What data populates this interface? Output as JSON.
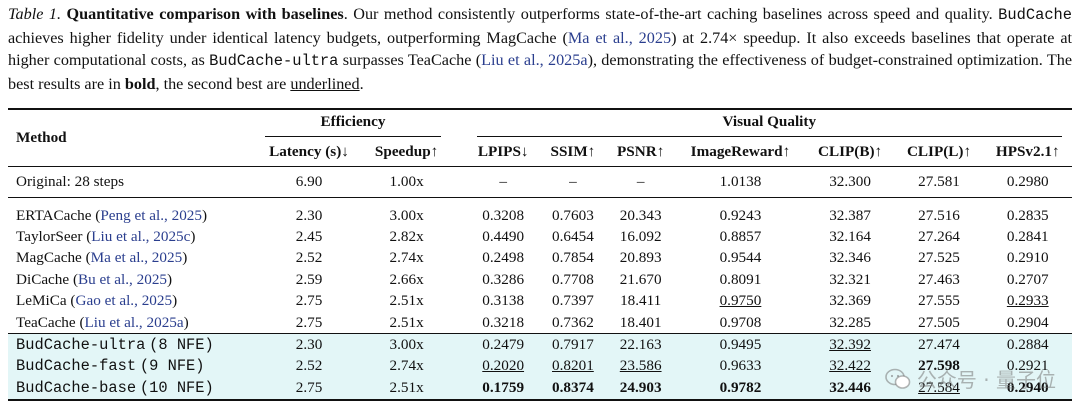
{
  "caption": {
    "label": "Table 1.",
    "title": "Quantitative comparison with baselines",
    "t1": ". Our method consistently outperforms state-of-the-art caching baselines across speed and quality. ",
    "code1": "BudCache",
    "t2": " achieves higher fidelity under identical latency budgets, outperforming MagCache (",
    "cite1": "Ma et al., 2025",
    "t3": ") at 2.74× speedup. It also exceeds baselines that operate at higher computational costs, as ",
    "code2": "BudCache-ultra",
    "t4": " surpasses TeaCache (",
    "cite2": "Liu et al., 2025a",
    "t5": "), demonstrating the effectiveness of budget-constrained optimization. The best results are in ",
    "bold_word": "bold",
    "t6": ", the second best are ",
    "underline_word": "underlined",
    "t7": "."
  },
  "table": {
    "method_header": "Method",
    "group_efficiency": "Efficiency",
    "group_quality": "Visual Quality",
    "columns": [
      "Latency (s)↓",
      "Speedup↑",
      "LPIPS↓",
      "SSIM↑",
      "PSNR↑",
      "ImageReward↑",
      "CLIP(B)↑",
      "CLIP(L)↑",
      "HPSv2.1↑"
    ],
    "original": {
      "method": "Original: 28 steps",
      "cells": [
        "6.90",
        "1.00x",
        "–",
        "–",
        "–",
        "1.0138",
        "32.300",
        "27.581",
        "0.2980"
      ]
    },
    "baselines": [
      {
        "name": "ERTACache",
        "cite": "Peng et al., 2025",
        "cells": [
          "2.30",
          "3.00x",
          "0.3208",
          "0.7603",
          "20.343",
          "0.9243",
          "32.387",
          "27.516",
          "0.2835"
        ]
      },
      {
        "name": "TaylorSeer",
        "cite": "Liu et al., 2025c",
        "cells": [
          "2.45",
          "2.82x",
          "0.4490",
          "0.6454",
          "16.092",
          "0.8857",
          "32.164",
          "27.264",
          "0.2841"
        ]
      },
      {
        "name": "MagCache",
        "cite": "Ma et al., 2025",
        "cells": [
          "2.52",
          "2.74x",
          "0.2498",
          "0.7854",
          "20.893",
          "0.9544",
          "32.346",
          "27.525",
          "0.2910"
        ]
      },
      {
        "name": "DiCache",
        "cite": "Bu et al., 2025",
        "cells": [
          "2.59",
          "2.66x",
          "0.3286",
          "0.7708",
          "21.670",
          "0.8091",
          "32.321",
          "27.463",
          "0.2707"
        ]
      },
      {
        "name": "LeMiCa",
        "cite": "Gao et al., 2025",
        "cells": [
          "2.75",
          "2.51x",
          "0.3138",
          "0.7397",
          "18.411",
          "0.9750",
          "32.369",
          "27.555",
          "0.2933"
        ]
      },
      {
        "name": "TeaCache",
        "cite": "Liu et al., 2025a",
        "cells": [
          "2.75",
          "2.51x",
          "0.3218",
          "0.7362",
          "18.401",
          "0.9708",
          "32.285",
          "27.505",
          "0.2904"
        ]
      }
    ],
    "ours": [
      {
        "name": "BudCache-ultra",
        "nfe": "(8 NFE)",
        "cells": [
          "2.30",
          "3.00x",
          "0.2479",
          "0.7917",
          "22.163",
          "0.9495",
          "32.392",
          "27.474",
          "0.2884"
        ]
      },
      {
        "name": "BudCache-fast",
        "nfe": "(9 NFE)",
        "cells": [
          "2.52",
          "2.74x",
          "0.2020",
          "0.8201",
          "23.586",
          "0.9633",
          "32.422",
          "27.598",
          "0.2921"
        ]
      },
      {
        "name": "BudCache-base",
        "nfe": "(10 NFE)",
        "cells": [
          "2.75",
          "2.51x",
          "0.1759",
          "0.8374",
          "24.903",
          "0.9782",
          "32.446",
          "27.584",
          "0.2940"
        ]
      }
    ]
  },
  "watermark": "公众号 · 量子位"
}
